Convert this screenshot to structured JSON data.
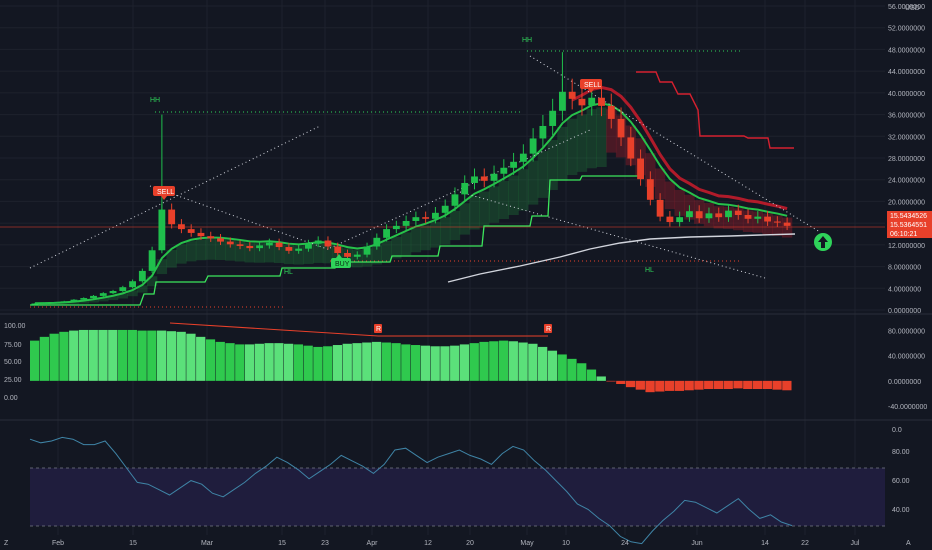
{
  "colors": {
    "background": "#131722",
    "up": "#1fbf4c",
    "down": "#e8402a",
    "grid": "#1e222d",
    "hh_line": "#2fd35a",
    "trail_stop": "#3ce65c",
    "red_band": "#c21c2b",
    "label_sell": "#e8402a",
    "label_buy": "#2fd35a",
    "rsi_band": "#1f1d3d",
    "rsi_line": "#3f84a6"
  },
  "price_axis": {
    "currency": "USD",
    "ticks": [
      "56.0000000",
      "52.0000000",
      "48.0000000",
      "44.0000000",
      "40.0000000",
      "36.0000000",
      "32.0000000",
      "28.0000000",
      "24.0000000",
      "20.0000000",
      "16.0000000",
      "12.0000000",
      "8.0000000",
      "4.0000000",
      "0.0000000"
    ],
    "badges": [
      "15.5434526",
      "15.5364551",
      "06:10:21"
    ]
  },
  "osc_axis": {
    "right_ticks": [
      "80.0000000",
      "40.0000000",
      "0.0000000",
      "-40.0000000"
    ],
    "left_ticks": [
      "100.00",
      "75.00",
      "50.00",
      "25.00",
      "0.00"
    ]
  },
  "rsi_axis": {
    "ticks": [
      "0.0",
      "80.00",
      "60.00",
      "40.00"
    ]
  },
  "time_axis": {
    "labels": [
      "Feb",
      "15",
      "Mar",
      "15",
      "23",
      "Apr",
      "12",
      "20",
      "May",
      "10",
      "24",
      "Jun",
      "14",
      "22",
      "Jul"
    ]
  },
  "annotations": {
    "hh1": "HH",
    "hh2": "HH",
    "hl1": "HL",
    "hl2": "HL",
    "sell1": "SELL",
    "sell2": "SELL",
    "buy": "BUY",
    "r1": "R",
    "r2": "R"
  },
  "chart_data": [
    {
      "type": "candlestick",
      "ylim": [
        0,
        56
      ],
      "close_by_bar": [
        1.2,
        1.3,
        1.4,
        1.6,
        1.9,
        2.2,
        2.6,
        3.1,
        3.5,
        4.2,
        5.3,
        7.2,
        11,
        18.5,
        15.8,
        14.9,
        14.2,
        13.6,
        13.2,
        12.6,
        12.1,
        11.8,
        11.4,
        11.9,
        12.4,
        11.6,
        10.9,
        11.3,
        12.2,
        12.8,
        11.7,
        10.5,
        9.8,
        10.2,
        11.7,
        13.3,
        14.9,
        15.5,
        16.4,
        17.1,
        16.8,
        17.9,
        19.2,
        21.3,
        23.4,
        24.6,
        23.8,
        25.1,
        26.2,
        27.3,
        28.8,
        31.6,
        33.9,
        36.7,
        40.2,
        38.9,
        37.7,
        39.1,
        37.6,
        35.2,
        31.8,
        27.9,
        24.1,
        20.3,
        17.2,
        16.2,
        17.1,
        18.2,
        16.9,
        17.8,
        17.1,
        18.3,
        17.5,
        16.8,
        17.2,
        16.3,
        16.1,
        15.5
      ]
    },
    {
      "type": "bar",
      "name": "oscillator",
      "ylim": [
        -40,
        100
      ],
      "values": [
        64,
        70,
        75,
        78,
        80,
        81,
        81,
        81,
        81,
        81,
        81,
        80,
        80,
        80,
        79,
        78,
        75,
        70,
        66,
        62,
        60,
        58,
        58,
        59,
        60,
        60,
        59,
        58,
        56,
        54,
        55,
        57,
        59,
        60,
        61,
        62,
        61,
        60,
        58,
        57,
        56,
        55,
        55,
        56,
        58,
        60,
        62,
        63,
        64,
        63,
        61,
        59,
        54,
        48,
        42,
        35,
        28,
        18,
        7,
        -1,
        -5,
        -10,
        -14,
        -18,
        -17,
        -16,
        -16,
        -15,
        -14,
        -13,
        -13,
        -13,
        -12,
        -13,
        -13,
        -13,
        -14,
        -15
      ]
    },
    {
      "type": "line",
      "name": "rsi",
      "ylim": [
        30,
        90
      ],
      "values": [
        86,
        84,
        85,
        87,
        86,
        83,
        83,
        85,
        78,
        70,
        62,
        61,
        58,
        55,
        59,
        63,
        61,
        56,
        54,
        58,
        62,
        67,
        71,
        76,
        73,
        69,
        64,
        68,
        72,
        77,
        74,
        71,
        67,
        72,
        80,
        81,
        77,
        73,
        76,
        78,
        80,
        77,
        75,
        72,
        78,
        82,
        80,
        74,
        69,
        63,
        57,
        50,
        47,
        42,
        38,
        32,
        29,
        28,
        35,
        41,
        46,
        52,
        51,
        48,
        45,
        49,
        53,
        47,
        42,
        44,
        40,
        38
      ]
    }
  ]
}
